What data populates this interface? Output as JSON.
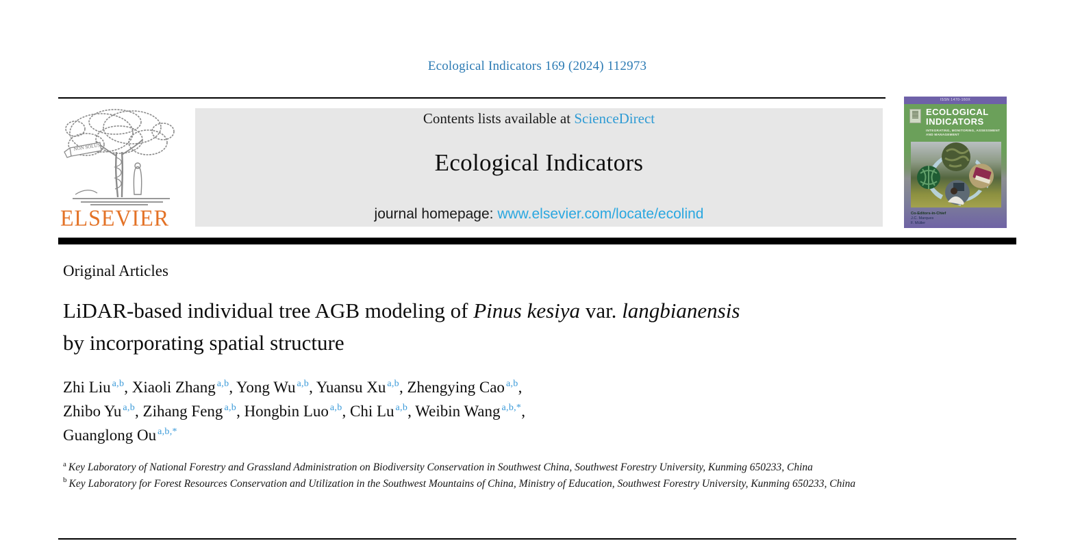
{
  "page": {
    "citation": "Ecological Indicators 169 (2024) 112973"
  },
  "banner": {
    "contents_prefix": "Contents lists available at ",
    "sciencedirect_label": "ScienceDirect",
    "journal_title": "Ecological Indicators",
    "homepage_prefix": "journal homepage: ",
    "homepage_url": "www.elsevier.com/locate/ecolind"
  },
  "publisher": {
    "name": "ELSEVIER",
    "motto": "NON SOLUS"
  },
  "cover": {
    "issn": "ISSN 1470-160X",
    "title_line1": "ECOLOGICAL",
    "title_line2": "INDICATORS",
    "subtitle": "INTEGRATING, MONITORING, ASSESSMENT AND MANAGEMENT",
    "editors_label": "Co-Editors-in-Chief",
    "editors": [
      "J.C. Marques",
      "F. Müller"
    ]
  },
  "article": {
    "section_label": "Original Articles",
    "title_lines": [
      [
        {
          "text": "LiDAR-based individual tree AGB modeling of ",
          "italic": false
        },
        {
          "text": "Pinus kesiya",
          "italic": true
        },
        {
          "text": " var. ",
          "italic": false
        },
        {
          "text": "langbianensis",
          "italic": true
        }
      ],
      [
        {
          "text": "by incorporating spatial structure",
          "italic": false
        }
      ]
    ],
    "author_lines": [
      [
        {
          "name": "Zhi Liu",
          "sup": "a,b"
        },
        {
          "name": "Xiaoli Zhang",
          "sup": "a,b"
        },
        {
          "name": "Yong Wu",
          "sup": "a,b"
        },
        {
          "name": "Yuansu Xu",
          "sup": "a,b"
        },
        {
          "name": "Zhengying Cao",
          "sup": "a,b"
        }
      ],
      [
        {
          "name": "Zhibo Yu",
          "sup": "a,b"
        },
        {
          "name": "Zihang Feng",
          "sup": "a,b"
        },
        {
          "name": "Hongbin Luo",
          "sup": "a,b"
        },
        {
          "name": "Chi Lu",
          "sup": "a,b"
        },
        {
          "name": "Weibin Wang",
          "sup": "a,b,*"
        }
      ],
      [
        {
          "name": "Guanglong Ou",
          "sup": "a,b,*"
        }
      ]
    ],
    "affiliations": [
      {
        "sup": "a",
        "text": "Key Laboratory of National Forestry and Grassland Administration on Biodiversity Conservation in Southwest China, Southwest Forestry University, Kunming 650233, China"
      },
      {
        "sup": "b",
        "text": "Key Laboratory for Forest Resources Conservation and Utilization in the Southwest Mountains of China, Ministry of Education, Southwest Forestry University, Kunming 650233, China"
      }
    ]
  },
  "colors": {
    "citation_blue": "#2b7ab3",
    "link_blue": "#2f9bd4",
    "homepage_link_blue": "#2aa7e0",
    "superscript_blue": "#3a9ad9",
    "elsevier_orange": "#e37226",
    "banner_gray": "#e7e7e7",
    "cover_green": "#6ba05a",
    "cover_purple": "#6e61a8"
  }
}
